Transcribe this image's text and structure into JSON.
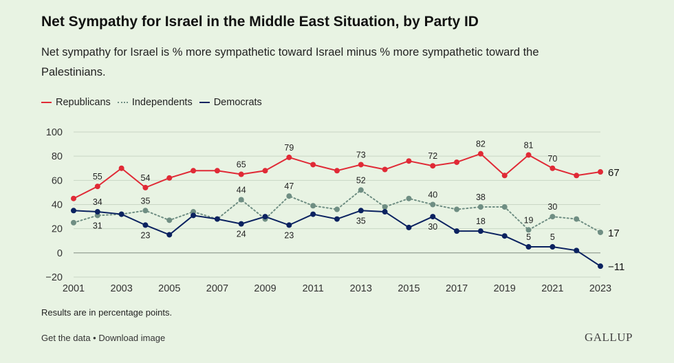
{
  "header": {
    "title": "Net Sympathy for Israel in the Middle East Situation, by Party ID",
    "subtitle": "Net sympathy for Israel is % more sympathetic toward Israel minus % more sympathetic toward the Palestinians."
  },
  "colors": {
    "background": "#e8f3e3",
    "republicans": "#e02a36",
    "independents": "#6f8e83",
    "democrats": "#0b2260",
    "grid": "#c9d6c4"
  },
  "chart_data": {
    "type": "line",
    "x": [
      2001,
      2002,
      2003,
      2004,
      2005,
      2006,
      2007,
      2008,
      2009,
      2010,
      2011,
      2012,
      2013,
      2014,
      2015,
      2016,
      2017,
      2018,
      2019,
      2020,
      2021,
      2022,
      2023
    ],
    "xticks": [
      2001,
      2003,
      2005,
      2007,
      2009,
      2011,
      2013,
      2015,
      2017,
      2019,
      2021,
      2023
    ],
    "xlim": [
      2001,
      2023
    ],
    "ylim": [
      -20,
      100
    ],
    "yticks": [
      -20,
      0,
      20,
      40,
      60,
      80,
      100
    ],
    "ytick_labels": [
      "−20",
      "0",
      "20",
      "40",
      "60",
      "80",
      "100"
    ],
    "grid": "horizontal",
    "legend_position": "top-left",
    "series": [
      {
        "name": "Republicans",
        "style": "solid",
        "values": [
          45,
          55,
          70,
          54,
          62,
          68,
          68,
          65,
          68,
          79,
          73,
          68,
          73,
          69,
          76,
          72,
          75,
          82,
          64,
          81,
          70,
          64,
          67
        ],
        "labels": [
          {
            "x": 2002,
            "text": "55",
            "pos": "above"
          },
          {
            "x": 2004,
            "text": "54",
            "pos": "above"
          },
          {
            "x": 2008,
            "text": "65",
            "pos": "above"
          },
          {
            "x": 2010,
            "text": "79",
            "pos": "above"
          },
          {
            "x": 2013,
            "text": "73",
            "pos": "above"
          },
          {
            "x": 2016,
            "text": "72",
            "pos": "above"
          },
          {
            "x": 2018,
            "text": "82",
            "pos": "above"
          },
          {
            "x": 2020,
            "text": "81",
            "pos": "above"
          },
          {
            "x": 2021,
            "text": "70",
            "pos": "above"
          },
          {
            "x": 2023,
            "text": "67",
            "pos": "end"
          }
        ]
      },
      {
        "name": "Independents",
        "style": "dotted",
        "values": [
          25,
          31,
          32,
          35,
          27,
          34,
          28,
          44,
          28,
          47,
          39,
          36,
          52,
          38,
          45,
          40,
          36,
          38,
          38,
          19,
          30,
          28,
          17
        ],
        "labels": [
          {
            "x": 2002,
            "text": "31",
            "pos": "below"
          },
          {
            "x": 2004,
            "text": "35",
            "pos": "above"
          },
          {
            "x": 2008,
            "text": "44",
            "pos": "above"
          },
          {
            "x": 2010,
            "text": "47",
            "pos": "above"
          },
          {
            "x": 2013,
            "text": "52",
            "pos": "above"
          },
          {
            "x": 2016,
            "text": "40",
            "pos": "above"
          },
          {
            "x": 2018,
            "text": "38",
            "pos": "above"
          },
          {
            "x": 2020,
            "text": "19",
            "pos": "above"
          },
          {
            "x": 2021,
            "text": "30",
            "pos": "above"
          },
          {
            "x": 2023,
            "text": "17",
            "pos": "end"
          }
        ]
      },
      {
        "name": "Democrats",
        "style": "solid",
        "values": [
          35,
          34,
          32,
          23,
          15,
          31,
          28,
          24,
          30,
          23,
          32,
          28,
          35,
          34,
          21,
          30,
          18,
          18,
          14,
          5,
          5,
          2,
          -11
        ],
        "labels": [
          {
            "x": 2002,
            "text": "34",
            "pos": "above"
          },
          {
            "x": 2004,
            "text": "23",
            "pos": "below"
          },
          {
            "x": 2008,
            "text": "24",
            "pos": "below"
          },
          {
            "x": 2010,
            "text": "23",
            "pos": "below"
          },
          {
            "x": 2013,
            "text": "35",
            "pos": "below"
          },
          {
            "x": 2016,
            "text": "30",
            "pos": "below"
          },
          {
            "x": 2018,
            "text": "18",
            "pos": "above"
          },
          {
            "x": 2020,
            "text": "5",
            "pos": "above"
          },
          {
            "x": 2021,
            "text": "5",
            "pos": "above"
          },
          {
            "x": 2023,
            "text": "−11",
            "pos": "end"
          }
        ]
      }
    ]
  },
  "footnote": "Results are in percentage points.",
  "footer": {
    "get_data": "Get the data",
    "separator": " • ",
    "download": "Download image",
    "brand": "GALLUP"
  }
}
